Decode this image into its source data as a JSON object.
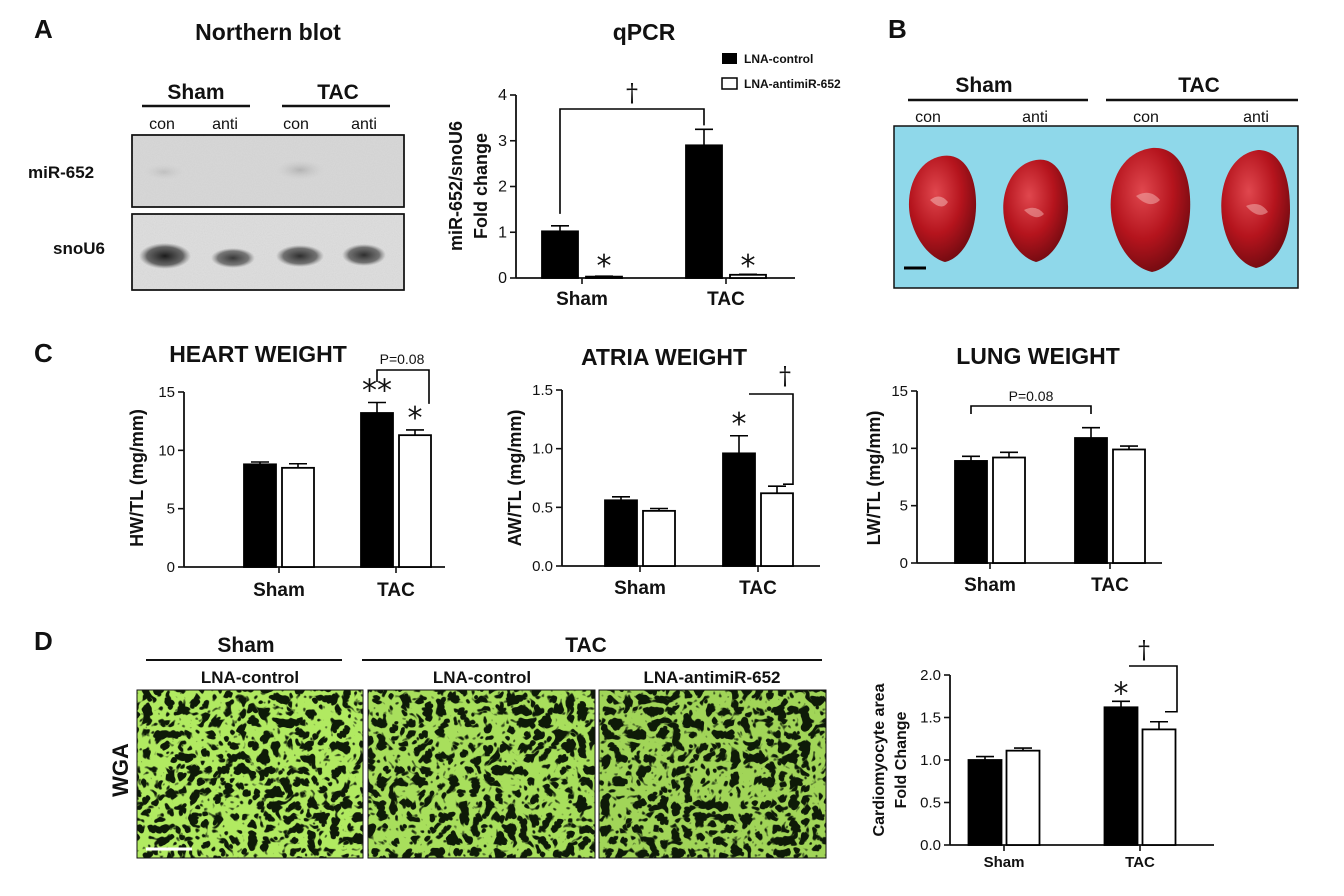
{
  "panels": {
    "A": "A",
    "B": "B",
    "C": "C",
    "D": "D"
  },
  "northern": {
    "title": "Northern blot",
    "groups": [
      "Sham",
      "TAC"
    ],
    "lanes": [
      "con",
      "anti",
      "con",
      "anti"
    ],
    "rows": [
      "miR-652",
      "snoU6"
    ]
  },
  "hearts": {
    "groups": [
      "Sham",
      "TAC"
    ],
    "lanes": [
      "con",
      "anti",
      "con",
      "anti"
    ]
  },
  "legend": {
    "control": "LNA-control",
    "anti": "LNA-antimiR-652"
  },
  "wga": {
    "row_label": "WGA",
    "groups": [
      "Sham",
      "TAC"
    ],
    "image_labels": [
      "LNA-control",
      "LNA-control",
      "LNA-antimiR-652"
    ]
  },
  "colors": {
    "control_bar": "#000000",
    "anti_bar": "#ffffff",
    "wga_green": "#6fd11e",
    "heart_red": "#b5141d",
    "heart_background": "#8fd8ea"
  },
  "chart_data": [
    {
      "id": "qpcr",
      "type": "bar",
      "title": "qPCR",
      "ylabel": "miR-652/snoU6",
      "ylabel2": "Fold change",
      "categories": [
        "Sham",
        "TAC"
      ],
      "ylim": [
        0,
        4
      ],
      "yticks": [
        "0",
        "1",
        "2",
        "3",
        "4"
      ],
      "series": [
        {
          "name": "LNA-control",
          "values": [
            1.02,
            2.9
          ],
          "errors": [
            0.12,
            0.35
          ]
        },
        {
          "name": "LNA-antimiR-652",
          "values": [
            0.03,
            0.07
          ],
          "errors": [
            0.01,
            0.01
          ]
        }
      ],
      "marks": [
        "*",
        "*"
      ],
      "bracket": "†"
    },
    {
      "id": "heart",
      "type": "bar",
      "title": "HEART WEIGHT",
      "ylabel": "HW/TL (mg/mm)",
      "categories": [
        "Sham",
        "TAC"
      ],
      "ylim": [
        0,
        15
      ],
      "yticks": [
        "0",
        "5",
        "10",
        "15"
      ],
      "series": [
        {
          "values": [
            8.8,
            13.2
          ],
          "errors": [
            0.2,
            0.9
          ]
        },
        {
          "values": [
            8.5,
            11.3
          ],
          "errors": [
            0.35,
            0.45
          ]
        }
      ],
      "marks": [
        "**",
        "*"
      ],
      "bracket": "P=0.08"
    },
    {
      "id": "atria",
      "type": "bar",
      "title": "ATRIA WEIGHT",
      "ylabel": "AW/TL (mg/mm)",
      "categories": [
        "Sham",
        "TAC"
      ],
      "ylim": [
        0,
        1.5
      ],
      "yticks": [
        "0.0",
        "0.5",
        "1.0",
        "1.5"
      ],
      "series": [
        {
          "values": [
            0.56,
            0.96
          ],
          "errors": [
            0.03,
            0.15
          ]
        },
        {
          "values": [
            0.47,
            0.62
          ],
          "errors": [
            0.02,
            0.06
          ]
        }
      ],
      "marks": [
        "*",
        "†"
      ]
    },
    {
      "id": "lung",
      "type": "bar",
      "title": "LUNG WEIGHT",
      "ylabel": "LW/TL (mg/mm)",
      "categories": [
        "Sham",
        "TAC"
      ],
      "ylim": [
        0,
        15
      ],
      "yticks": [
        "0",
        "5",
        "10",
        "15"
      ],
      "series": [
        {
          "values": [
            8.9,
            10.9
          ],
          "errors": [
            0.4,
            0.9
          ]
        },
        {
          "values": [
            9.2,
            9.9
          ],
          "errors": [
            0.45,
            0.3
          ]
        }
      ],
      "bracket": "P=0.08"
    },
    {
      "id": "cardio",
      "type": "bar",
      "ylabel": "Cardiomyocyte area",
      "ylabel2": "Fold Change",
      "categories": [
        "Sham",
        "TAC"
      ],
      "ylim": [
        0,
        2.0
      ],
      "yticks": [
        "0.0",
        "0.5",
        "1.0",
        "1.5",
        "2.0"
      ],
      "series": [
        {
          "values": [
            1.0,
            1.62
          ],
          "errors": [
            0.04,
            0.07
          ]
        },
        {
          "values": [
            1.11,
            1.36
          ],
          "errors": [
            0.03,
            0.09
          ]
        }
      ],
      "marks": [
        "*"
      ],
      "bracket": "†"
    }
  ]
}
